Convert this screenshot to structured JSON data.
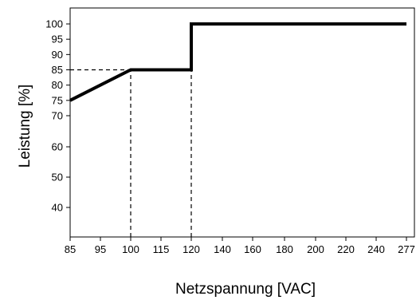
{
  "chart_data": {
    "type": "line",
    "xlabel": "Netzspannung [VAC]",
    "ylabel": "Leistung [%]",
    "x_ticks": [
      "85",
      "95",
      "100",
      "115",
      "120",
      "140",
      "160",
      "180",
      "200",
      "220",
      "240",
      "277"
    ],
    "y_ticks": [
      100,
      95,
      90,
      85,
      80,
      75,
      70,
      60,
      50,
      40
    ],
    "ylim": [
      30,
      105
    ],
    "grid": false,
    "series": [
      {
        "color": "#000000",
        "points": [
          {
            "x": "85",
            "y": 75
          },
          {
            "x": "100",
            "y": 85
          },
          {
            "x": "120",
            "y": 85
          },
          {
            "x": "120",
            "y": 100
          },
          {
            "x": "277",
            "y": 100
          }
        ]
      }
    ],
    "reference_lines": [
      {
        "from": {
          "x": "85",
          "y": 85
        },
        "to": {
          "x": "100",
          "y": 85
        }
      },
      {
        "from": {
          "x": "100",
          "y": 30
        },
        "to": {
          "x": "100",
          "y": 85
        }
      },
      {
        "from": {
          "x": "120",
          "y": 30
        },
        "to": {
          "x": "120",
          "y": 85
        }
      }
    ]
  }
}
